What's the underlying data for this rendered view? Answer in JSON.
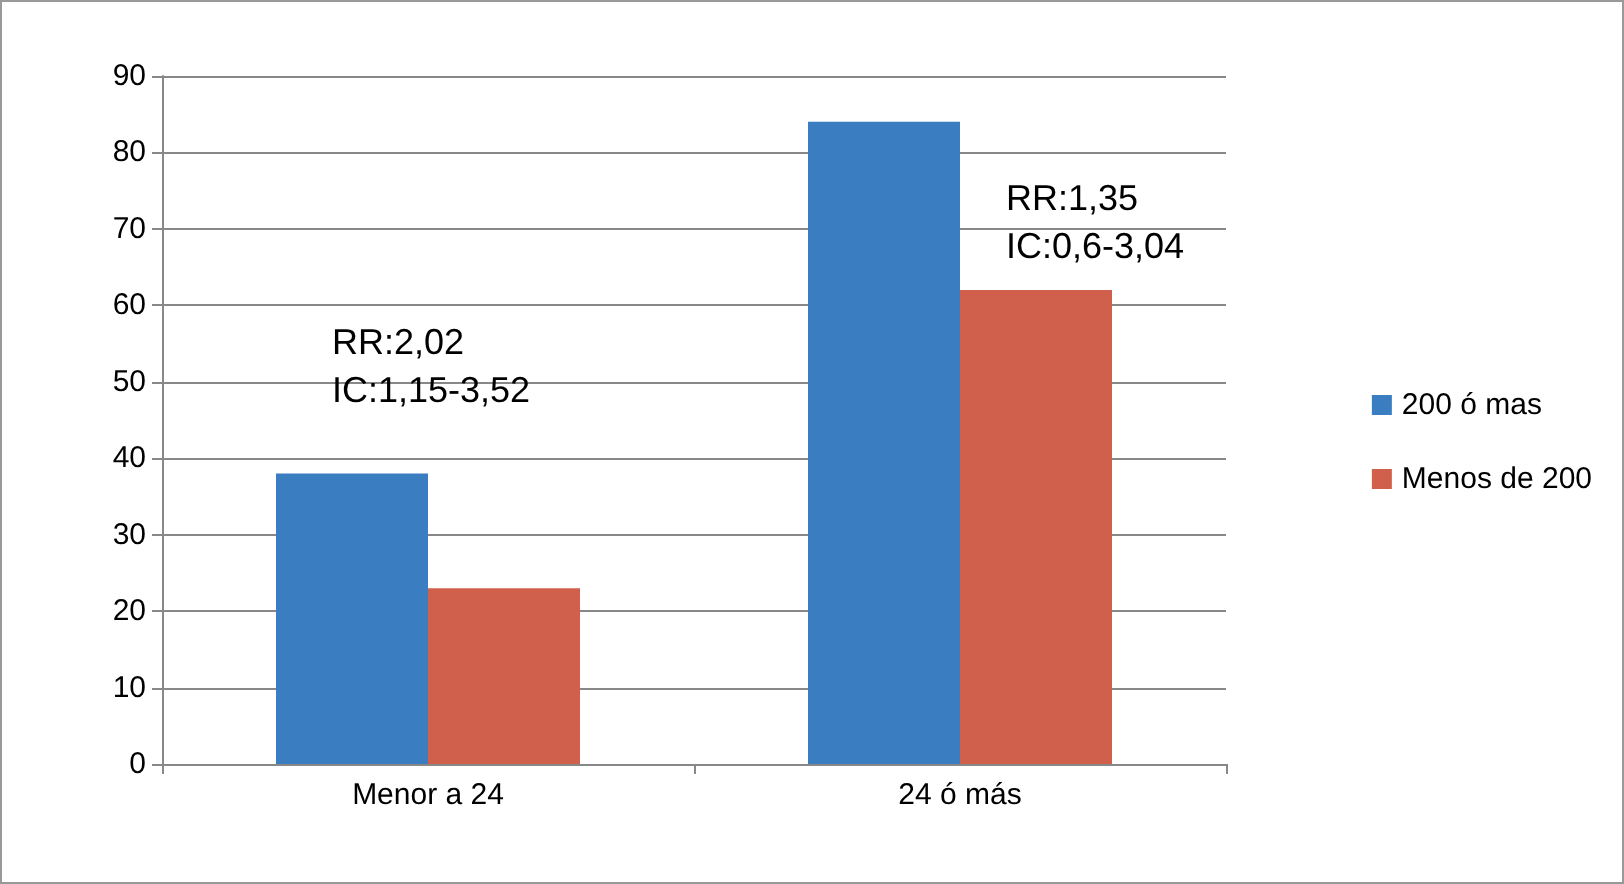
{
  "chart_data": {
    "type": "bar",
    "categories": [
      "Menor a 24",
      "24 ó más"
    ],
    "series": [
      {
        "name": "200 ó mas",
        "color": "#3a7dc0",
        "values": [
          38,
          84
        ]
      },
      {
        "name": "Menos de 200",
        "color": "#d0604c",
        "values": [
          23,
          62
        ]
      }
    ],
    "ylim": [
      0,
      90
    ],
    "yticks": [
      0,
      10,
      20,
      30,
      40,
      50,
      60,
      70,
      80,
      90
    ],
    "grid": "y",
    "legend": "right",
    "annotations": [
      "RR:2,02\nIC:1,15-3,52",
      "RR:1,35\nIC:0,6-3,04"
    ]
  }
}
